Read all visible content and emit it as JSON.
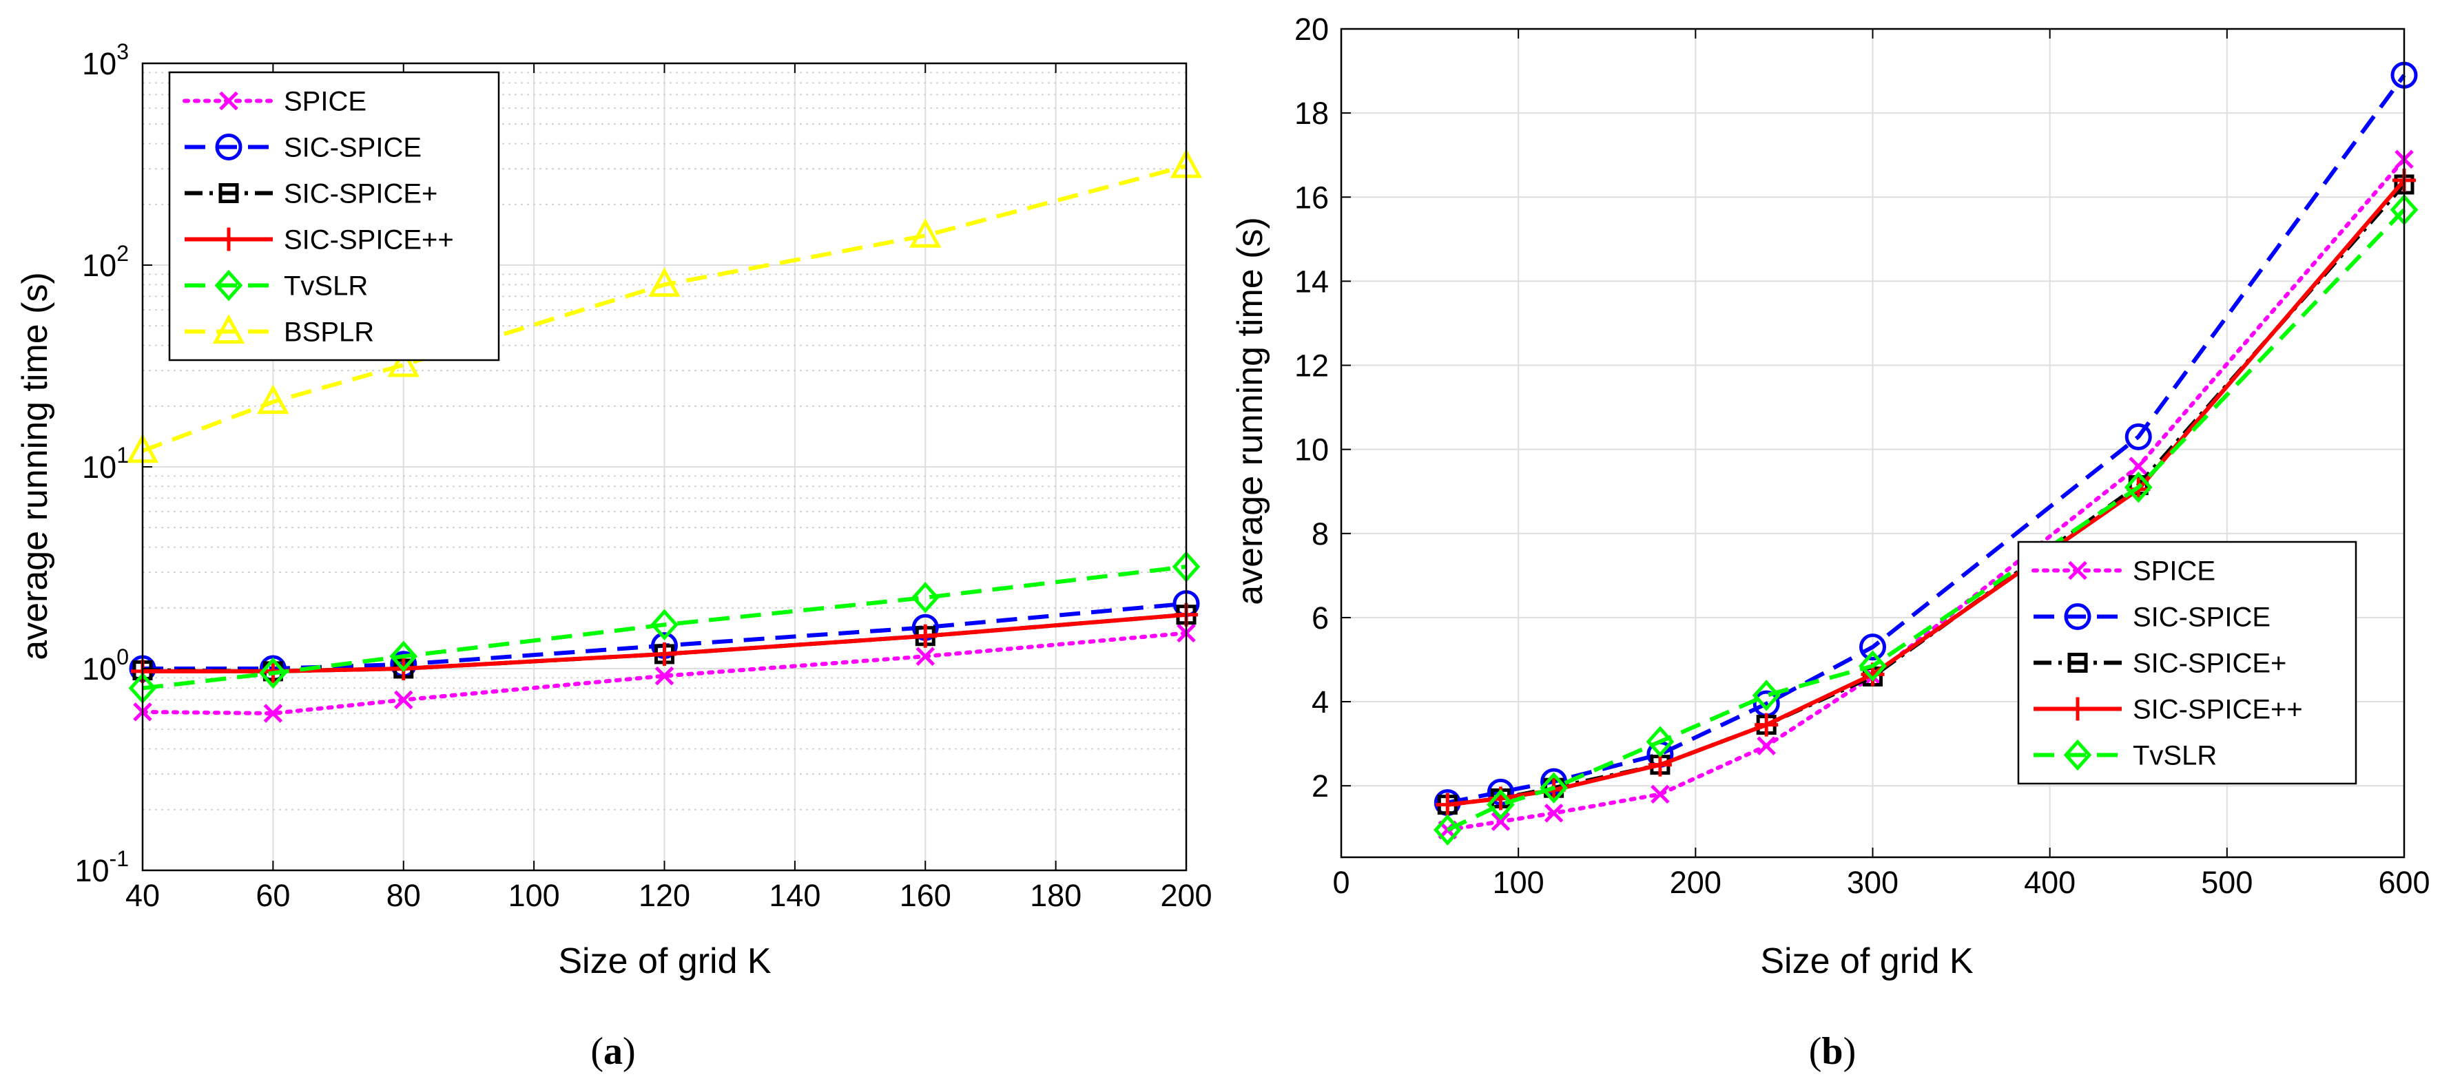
{
  "chart_data": [
    {
      "panel_label": "a",
      "type": "line",
      "yscale": "log",
      "xlabel": "Size of grid K",
      "ylabel": "average running time (s)",
      "xlim": [
        40,
        200
      ],
      "ylim": [
        0.1,
        1000
      ],
      "xticks": [
        40,
        60,
        80,
        100,
        120,
        140,
        160,
        180,
        200
      ],
      "yticks": [
        {
          "value": 0.1,
          "base": "10",
          "exp": "-1"
        },
        {
          "value": 1,
          "base": "10",
          "exp": "0"
        },
        {
          "value": 10,
          "base": "10",
          "exp": "1"
        },
        {
          "value": 100,
          "base": "10",
          "exp": "2"
        },
        {
          "value": 1000,
          "base": "10",
          "exp": "3"
        }
      ],
      "grid": true,
      "legend_position": "top-left",
      "x": [
        40,
        60,
        80,
        120,
        160,
        200
      ],
      "series": [
        {
          "name": "SPICE",
          "color": "#ff00ff",
          "dash": "dotted",
          "marker": "x",
          "values": [
            0.61,
            0.6,
            0.7,
            0.92,
            1.15,
            1.5
          ]
        },
        {
          "name": "SIC-SPICE",
          "color": "#0000ff",
          "dash": "dashed",
          "marker": "circle",
          "values": [
            1.0,
            1.0,
            1.05,
            1.3,
            1.6,
            2.1
          ]
        },
        {
          "name": "SIC-SPICE+",
          "color": "#000000",
          "dash": "dashdot",
          "marker": "square",
          "values": [
            0.98,
            0.97,
            1.0,
            1.18,
            1.45,
            1.85
          ]
        },
        {
          "name": "SIC-SPICE++",
          "color": "#ff0000",
          "dash": "solid",
          "marker": "plus",
          "values": [
            0.97,
            0.97,
            1.0,
            1.18,
            1.45,
            1.85
          ]
        },
        {
          "name": "TvSLR",
          "color": "#00ff00",
          "dash": "dashed",
          "marker": "diamond",
          "values": [
            0.8,
            0.95,
            1.15,
            1.65,
            2.25,
            3.2
          ]
        },
        {
          "name": "BSPLR",
          "color": "#ffff00",
          "dash": "dashed",
          "marker": "triangle",
          "values": [
            12,
            21,
            32,
            80,
            140,
            310
          ]
        }
      ]
    },
    {
      "panel_label": "b",
      "type": "line",
      "yscale": "linear",
      "xlabel": "Size of grid K",
      "ylabel": "average running time (s)",
      "xlim": [
        0,
        600
      ],
      "ylim": [
        0.3,
        20
      ],
      "xticks": [
        0,
        100,
        200,
        300,
        400,
        500,
        600
      ],
      "yticks": [
        2,
        4,
        6,
        8,
        10,
        12,
        14,
        16,
        18,
        20
      ],
      "grid": true,
      "legend_position": "center-right",
      "x": [
        60,
        90,
        120,
        180,
        240,
        300,
        450,
        600
      ],
      "series": [
        {
          "name": "SPICE",
          "color": "#ff00ff",
          "dash": "dotted",
          "marker": "x",
          "values": [
            0.95,
            1.15,
            1.35,
            1.8,
            2.95,
            4.6,
            9.6,
            16.9
          ]
        },
        {
          "name": "SIC-SPICE",
          "color": "#0000ff",
          "dash": "dashed",
          "marker": "circle",
          "values": [
            1.6,
            1.85,
            2.1,
            2.75,
            3.95,
            5.3,
            10.3,
            18.9
          ]
        },
        {
          "name": "SIC-SPICE+",
          "color": "#000000",
          "dash": "dashdot",
          "marker": "square",
          "values": [
            1.55,
            1.7,
            1.95,
            2.5,
            3.45,
            4.6,
            9.15,
            16.3
          ]
        },
        {
          "name": "SIC-SPICE++",
          "color": "#ff0000",
          "dash": "solid",
          "marker": "plus",
          "values": [
            1.55,
            1.7,
            1.9,
            2.5,
            3.45,
            4.65,
            9.05,
            16.4
          ]
        },
        {
          "name": "TvSLR",
          "color": "#00ff00",
          "dash": "dashed",
          "marker": "diamond",
          "values": [
            0.95,
            1.55,
            1.95,
            3.05,
            4.15,
            4.85,
            9.1,
            15.7
          ]
        }
      ]
    }
  ]
}
